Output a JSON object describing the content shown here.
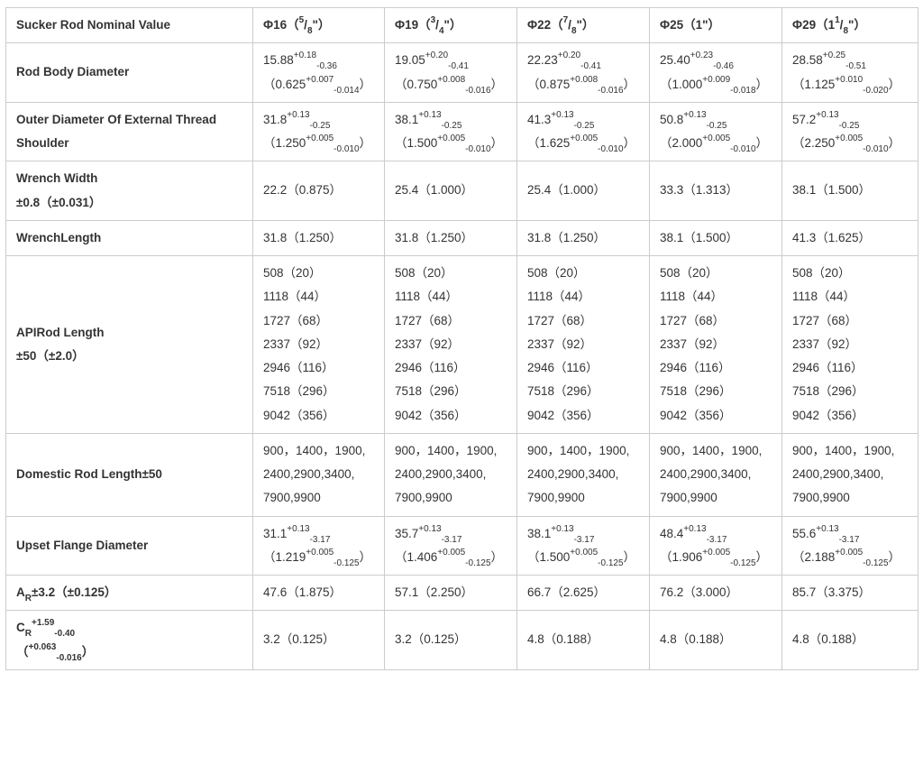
{
  "colors": {
    "border": "#cccccc",
    "text": "#333333",
    "background": "#ffffff"
  },
  "table": {
    "header": [
      [
        {
          "t": "Sucker Rod Nominal Value"
        }
      ],
      [
        {
          "t": "Φ16（"
        },
        {
          "u": "5"
        },
        {
          "t": "/"
        },
        {
          "d": "8"
        },
        {
          "t": "\"）"
        }
      ],
      [
        {
          "t": "Φ19（"
        },
        {
          "u": "3"
        },
        {
          "t": "/"
        },
        {
          "d": "4"
        },
        {
          "t": "\"）"
        }
      ],
      [
        {
          "t": "Φ22（"
        },
        {
          "u": "7"
        },
        {
          "t": "/"
        },
        {
          "d": "8"
        },
        {
          "t": "\"）"
        }
      ],
      [
        {
          "t": "Φ25（1\"）"
        }
      ],
      [
        {
          "t": "Φ29（1"
        },
        {
          "u": "1"
        },
        {
          "t": "/"
        },
        {
          "d": "8"
        },
        {
          "t": "\"）"
        }
      ]
    ],
    "rows": [
      {
        "label": [
          [
            {
              "t": "Rod Body Diameter"
            }
          ]
        ],
        "cells": [
          [
            [
              {
                "t": "15.88"
              },
              {
                "u": "+0.18"
              },
              {
                "d": "-0.36"
              }
            ],
            [
              {
                "t": "（0.625"
              },
              {
                "u": "+0.007"
              },
              {
                "d": "-0.014"
              },
              {
                "t": "）"
              }
            ]
          ],
          [
            [
              {
                "t": "19.05"
              },
              {
                "u": "+0.20"
              },
              {
                "d": "-0.41"
              }
            ],
            [
              {
                "t": "（0.750"
              },
              {
                "u": "+0.008"
              },
              {
                "d": "-0.016"
              },
              {
                "t": "）"
              }
            ]
          ],
          [
            [
              {
                "t": "22.23"
              },
              {
                "u": "+0.20"
              },
              {
                "d": "-0.41"
              }
            ],
            [
              {
                "t": "（0.875"
              },
              {
                "u": "+0.008"
              },
              {
                "d": "-0.016"
              },
              {
                "t": "）"
              }
            ]
          ],
          [
            [
              {
                "t": "25.40"
              },
              {
                "u": "+0.23"
              },
              {
                "d": "-0.46"
              }
            ],
            [
              {
                "t": "（1.000"
              },
              {
                "u": "+0.009"
              },
              {
                "d": "-0.018"
              },
              {
                "t": "）"
              }
            ]
          ],
          [
            [
              {
                "t": "28.58"
              },
              {
                "u": "+0.25"
              },
              {
                "d": "-0.51"
              }
            ],
            [
              {
                "t": "（1.125"
              },
              {
                "u": "+0.010"
              },
              {
                "d": "-0.020"
              },
              {
                "t": "）"
              }
            ]
          ]
        ]
      },
      {
        "label": [
          [
            {
              "t": "Outer Diameter Of External Thread"
            }
          ],
          [
            {
              "t": "Shoulder"
            }
          ]
        ],
        "cells": [
          [
            [
              {
                "t": "31.8"
              },
              {
                "u": "+0.13"
              },
              {
                "d": "-0.25"
              }
            ],
            [
              {
                "t": "（1.250"
              },
              {
                "u": "+0.005"
              },
              {
                "d": "-0.010"
              },
              {
                "t": "）"
              }
            ]
          ],
          [
            [
              {
                "t": "38.1"
              },
              {
                "u": "+0.13"
              },
              {
                "d": "-0.25"
              }
            ],
            [
              {
                "t": "（1.500"
              },
              {
                "u": "+0.005"
              },
              {
                "d": "-0.010"
              },
              {
                "t": "）"
              }
            ]
          ],
          [
            [
              {
                "t": "41.3"
              },
              {
                "u": "+0.13"
              },
              {
                "d": "-0.25"
              }
            ],
            [
              {
                "t": "（1.625"
              },
              {
                "u": "+0.005"
              },
              {
                "d": "-0.010"
              },
              {
                "t": "）"
              }
            ]
          ],
          [
            [
              {
                "t": "50.8"
              },
              {
                "u": "+0.13"
              },
              {
                "d": "-0.25"
              }
            ],
            [
              {
                "t": "（2.000"
              },
              {
                "u": "+0.005"
              },
              {
                "d": "-0.010"
              },
              {
                "t": "）"
              }
            ]
          ],
          [
            [
              {
                "t": "57.2"
              },
              {
                "u": "+0.13"
              },
              {
                "d": "-0.25"
              }
            ],
            [
              {
                "t": "（2.250"
              },
              {
                "u": "+0.005"
              },
              {
                "d": "-0.010"
              },
              {
                "t": "）"
              }
            ]
          ]
        ]
      },
      {
        "label": [
          [
            {
              "t": "Wrench Width"
            }
          ],
          [
            {
              "t": "±0.8（±0.031）"
            }
          ]
        ],
        "cells": [
          [
            [
              {
                "t": "22.2（0.875）"
              }
            ]
          ],
          [
            [
              {
                "t": "25.4（1.000）"
              }
            ]
          ],
          [
            [
              {
                "t": "25.4（1.000）"
              }
            ]
          ],
          [
            [
              {
                "t": "33.3（1.313）"
              }
            ]
          ],
          [
            [
              {
                "t": "38.1（1.500）"
              }
            ]
          ]
        ]
      },
      {
        "label": [
          [
            {
              "t": "WrenchLength"
            }
          ]
        ],
        "cells": [
          [
            [
              {
                "t": "31.8（1.250）"
              }
            ]
          ],
          [
            [
              {
                "t": "31.8（1.250）"
              }
            ]
          ],
          [
            [
              {
                "t": "31.8（1.250）"
              }
            ]
          ],
          [
            [
              {
                "t": "38.1（1.500）"
              }
            ]
          ],
          [
            [
              {
                "t": "41.3（1.625）"
              }
            ]
          ]
        ]
      },
      {
        "label": [
          [
            {
              "t": "APIRod Length"
            }
          ],
          [
            {
              "t": "±50（±2.0）"
            }
          ]
        ],
        "cells": [
          [
            [
              {
                "t": "508（20）"
              }
            ],
            [
              {
                "t": "1118（44）"
              }
            ],
            [
              {
                "t": "1727（68）"
              }
            ],
            [
              {
                "t": "2337（92）"
              }
            ],
            [
              {
                "t": "2946（116）"
              }
            ],
            [
              {
                "t": "7518（296）"
              }
            ],
            [
              {
                "t": "9042（356）"
              }
            ]
          ],
          [
            [
              {
                "t": "508（20）"
              }
            ],
            [
              {
                "t": "1118（44）"
              }
            ],
            [
              {
                "t": "1727（68）"
              }
            ],
            [
              {
                "t": "2337（92）"
              }
            ],
            [
              {
                "t": "2946（116）"
              }
            ],
            [
              {
                "t": "7518（296）"
              }
            ],
            [
              {
                "t": "9042（356）"
              }
            ]
          ],
          [
            [
              {
                "t": "508（20）"
              }
            ],
            [
              {
                "t": "1118（44）"
              }
            ],
            [
              {
                "t": "1727（68）"
              }
            ],
            [
              {
                "t": "2337（92）"
              }
            ],
            [
              {
                "t": "2946（116）"
              }
            ],
            [
              {
                "t": "7518（296）"
              }
            ],
            [
              {
                "t": "9042（356）"
              }
            ]
          ],
          [
            [
              {
                "t": "508（20）"
              }
            ],
            [
              {
                "t": "1118（44）"
              }
            ],
            [
              {
                "t": "1727（68）"
              }
            ],
            [
              {
                "t": "2337（92）"
              }
            ],
            [
              {
                "t": "2946（116）"
              }
            ],
            [
              {
                "t": "7518（296）"
              }
            ],
            [
              {
                "t": "9042（356）"
              }
            ]
          ],
          [
            [
              {
                "t": "508（20）"
              }
            ],
            [
              {
                "t": "1118（44）"
              }
            ],
            [
              {
                "t": "1727（68）"
              }
            ],
            [
              {
                "t": "2337（92）"
              }
            ],
            [
              {
                "t": "2946（116）"
              }
            ],
            [
              {
                "t": "7518（296）"
              }
            ],
            [
              {
                "t": "9042（356）"
              }
            ]
          ]
        ]
      },
      {
        "label": [
          [
            {
              "t": "Domestic Rod Length±50"
            }
          ]
        ],
        "cells": [
          [
            [
              {
                "t": "900，1400，1900,"
              }
            ],
            [
              {
                "t": "2400,2900,3400,"
              }
            ],
            [
              {
                "t": "7900,9900"
              }
            ]
          ],
          [
            [
              {
                "t": "900，1400，1900,"
              }
            ],
            [
              {
                "t": "2400,2900,3400,"
              }
            ],
            [
              {
                "t": "7900,9900"
              }
            ]
          ],
          [
            [
              {
                "t": "900，1400，1900,"
              }
            ],
            [
              {
                "t": "2400,2900,3400,"
              }
            ],
            [
              {
                "t": "7900,9900"
              }
            ]
          ],
          [
            [
              {
                "t": "900，1400，1900,"
              }
            ],
            [
              {
                "t": "2400,2900,3400,"
              }
            ],
            [
              {
                "t": "7900,9900"
              }
            ]
          ],
          [
            [
              {
                "t": "900，1400，1900,"
              }
            ],
            [
              {
                "t": "2400,2900,3400,"
              }
            ],
            [
              {
                "t": "7900,9900"
              }
            ]
          ]
        ]
      },
      {
        "label": [
          [
            {
              "t": "Upset Flange Diameter"
            }
          ]
        ],
        "cells": [
          [
            [
              {
                "t": "31.1"
              },
              {
                "u": "+0.13"
              },
              {
                "d": "-3.17"
              }
            ],
            [
              {
                "t": "（1.219"
              },
              {
                "u": "+0.005"
              },
              {
                "d": "-0.125"
              },
              {
                "t": "）"
              }
            ]
          ],
          [
            [
              {
                "t": "35.7"
              },
              {
                "u": "+0.13"
              },
              {
                "d": "-3.17"
              }
            ],
            [
              {
                "t": "（1.406"
              },
              {
                "u": "+0.005"
              },
              {
                "d": "-0.125"
              },
              {
                "t": "）"
              }
            ]
          ],
          [
            [
              {
                "t": "38.1"
              },
              {
                "u": "+0.13"
              },
              {
                "d": "-3.17"
              }
            ],
            [
              {
                "t": "（1.500"
              },
              {
                "u": "+0.005"
              },
              {
                "d": "-0.125"
              },
              {
                "t": "）"
              }
            ]
          ],
          [
            [
              {
                "t": "48.4"
              },
              {
                "u": "+0.13"
              },
              {
                "d": "-3.17"
              }
            ],
            [
              {
                "t": "（1.906"
              },
              {
                "u": "+0.005"
              },
              {
                "d": "-0.125"
              },
              {
                "t": "）"
              }
            ]
          ],
          [
            [
              {
                "t": "55.6"
              },
              {
                "u": "+0.13"
              },
              {
                "d": "-3.17"
              }
            ],
            [
              {
                "t": "（2.188"
              },
              {
                "u": "+0.005"
              },
              {
                "d": "-0.125"
              },
              {
                "t": "）"
              }
            ]
          ]
        ]
      },
      {
        "label": [
          [
            {
              "t": "A"
            },
            {
              "d": "R"
            },
            {
              "t": "±3.2（±0.125）"
            }
          ]
        ],
        "cells": [
          [
            [
              {
                "t": "47.6（1.875）"
              }
            ]
          ],
          [
            [
              {
                "t": "57.1（2.250）"
              }
            ]
          ],
          [
            [
              {
                "t": "66.7（2.625）"
              }
            ]
          ],
          [
            [
              {
                "t": "76.2（3.000）"
              }
            ]
          ],
          [
            [
              {
                "t": "85.7（3.375）"
              }
            ]
          ]
        ]
      },
      {
        "label": [
          [
            {
              "t": "C"
            },
            {
              "d": "R"
            },
            {
              "u": "+1.59"
            },
            {
              "d": "-0.40"
            }
          ],
          [
            {
              "t": "（"
            },
            {
              "u": "+0.063"
            },
            {
              "d": "-0.016"
            },
            {
              "t": "）"
            }
          ]
        ],
        "cells": [
          [
            [
              {
                "t": "3.2（0.125）"
              }
            ]
          ],
          [
            [
              {
                "t": "3.2（0.125）"
              }
            ]
          ],
          [
            [
              {
                "t": "4.8（0.188）"
              }
            ]
          ],
          [
            [
              {
                "t": "4.8（0.188）"
              }
            ]
          ],
          [
            [
              {
                "t": "4.8（0.188）"
              }
            ]
          ]
        ]
      }
    ]
  }
}
